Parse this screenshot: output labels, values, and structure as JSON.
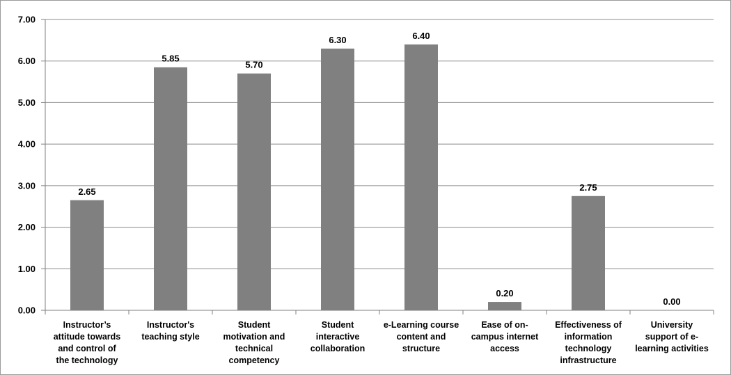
{
  "chart_data": {
    "type": "bar",
    "categories": [
      "Instructor’s attitude towards and control of the technology",
      "Instructor's teaching style",
      "Student motivation and technical competency",
      "Student interactive collaboration",
      "e-Learning course content and structure",
      "Ease of on-campus internet access",
      "Effectiveness of information technology infrastructure",
      "University support of e-learning activities"
    ],
    "category_label_lines": [
      [
        "Instructor’s",
        "attitude towards",
        "and control of",
        "the technology"
      ],
      [
        "Instructor's",
        "teaching style"
      ],
      [
        "Student",
        "motivation and",
        "technical",
        "competency"
      ],
      [
        "Student",
        "interactive",
        "collaboration"
      ],
      [
        "e-Learning course",
        "content and",
        "structure"
      ],
      [
        "Ease of on-",
        "campus internet",
        "access"
      ],
      [
        "Effectiveness of",
        "information",
        "technology",
        "infrastructure"
      ],
      [
        "University",
        "support of e-",
        "learning activities"
      ]
    ],
    "values": [
      2.65,
      5.85,
      5.7,
      6.3,
      6.4,
      0.2,
      2.75,
      0.0
    ],
    "data_labels": [
      "2.65",
      "5.85",
      "5.70",
      "6.30",
      "6.40",
      "0.20",
      "2.75",
      "0.00"
    ],
    "ylim": [
      0,
      7
    ],
    "yticks": [
      0,
      1,
      2,
      3,
      4,
      5,
      6,
      7
    ],
    "ytick_labels": [
      "0.00",
      "1.00",
      "2.00",
      "3.00",
      "4.00",
      "5.00",
      "6.00",
      "7.00"
    ],
    "title": "",
    "xlabel": "",
    "ylabel": "",
    "grid": true,
    "legend": "none",
    "colors": {
      "bar": "#808080",
      "grid": "#8c8c8c",
      "axis": "#7f7f7f",
      "text": "#000000",
      "border": "#9a9a9a"
    }
  }
}
